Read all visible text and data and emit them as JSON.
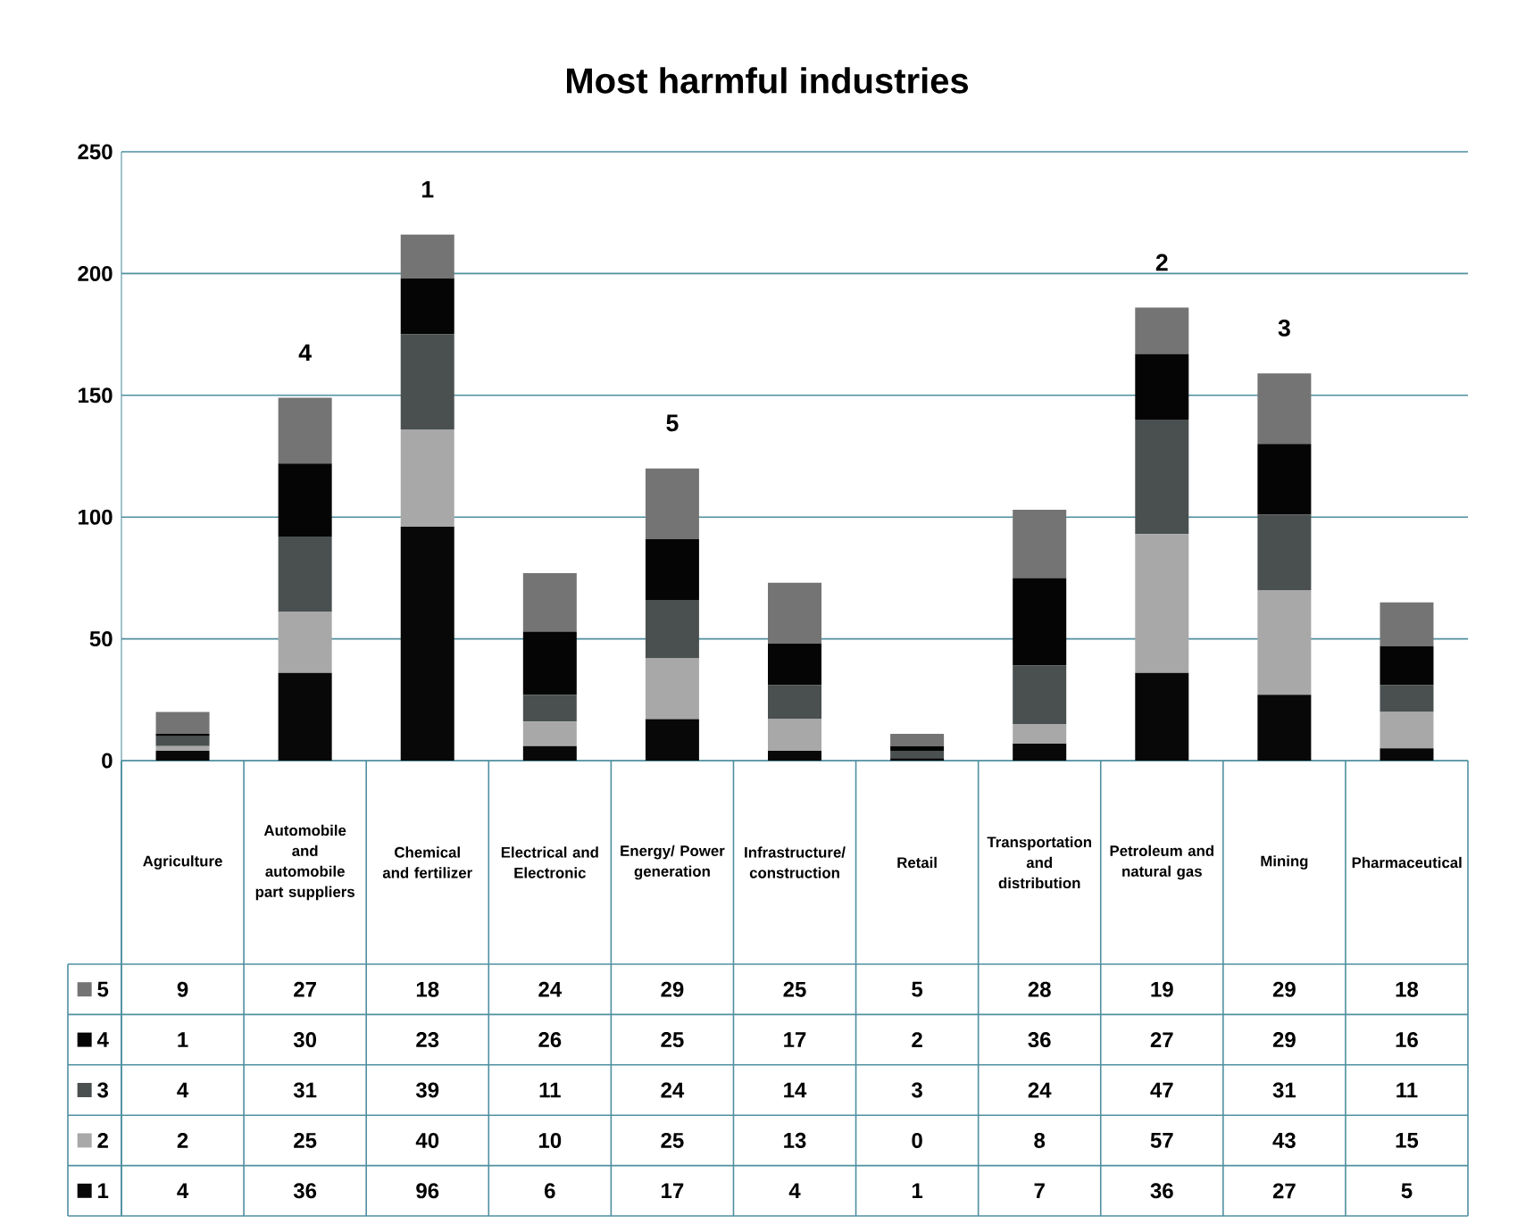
{
  "chart_data": {
    "type": "bar",
    "title": "Most harmful industries",
    "stacked": true,
    "categories": [
      "Agriculture",
      "Automobile and automobile part suppliers",
      "Chemical and fertilizer",
      "Electrical and Electronic",
      "Energy/ Power generation",
      "Infrastructure/ construction",
      "Retail",
      "Transportation and distribution",
      "Petroleum and natural gas",
      "Mining",
      "Pharmaceutical"
    ],
    "series": [
      {
        "name": "1",
        "color": "#080808",
        "values": [
          4,
          36,
          96,
          6,
          17,
          4,
          1,
          7,
          36,
          27,
          5
        ]
      },
      {
        "name": "2",
        "color": "#a8a8a8",
        "values": [
          2,
          25,
          40,
          10,
          25,
          13,
          0,
          8,
          57,
          43,
          15
        ]
      },
      {
        "name": "3",
        "color": "#4a5050",
        "values": [
          4,
          31,
          39,
          11,
          24,
          14,
          3,
          24,
          47,
          31,
          11
        ]
      },
      {
        "name": "4",
        "color": "#050505",
        "values": [
          1,
          30,
          23,
          26,
          25,
          17,
          2,
          36,
          27,
          29,
          16
        ]
      },
      {
        "name": "5",
        "color": "#747474",
        "values": [
          9,
          27,
          18,
          24,
          29,
          25,
          5,
          28,
          19,
          29,
          18
        ]
      }
    ],
    "ylim": [
      0,
      250
    ],
    "yticks": [
      0,
      50,
      100,
      150,
      200,
      250
    ],
    "grid": "y",
    "legend": "bottom",
    "data_labels": true,
    "annotations": [
      "1",
      "2",
      "3",
      "4",
      "5"
    ]
  }
}
